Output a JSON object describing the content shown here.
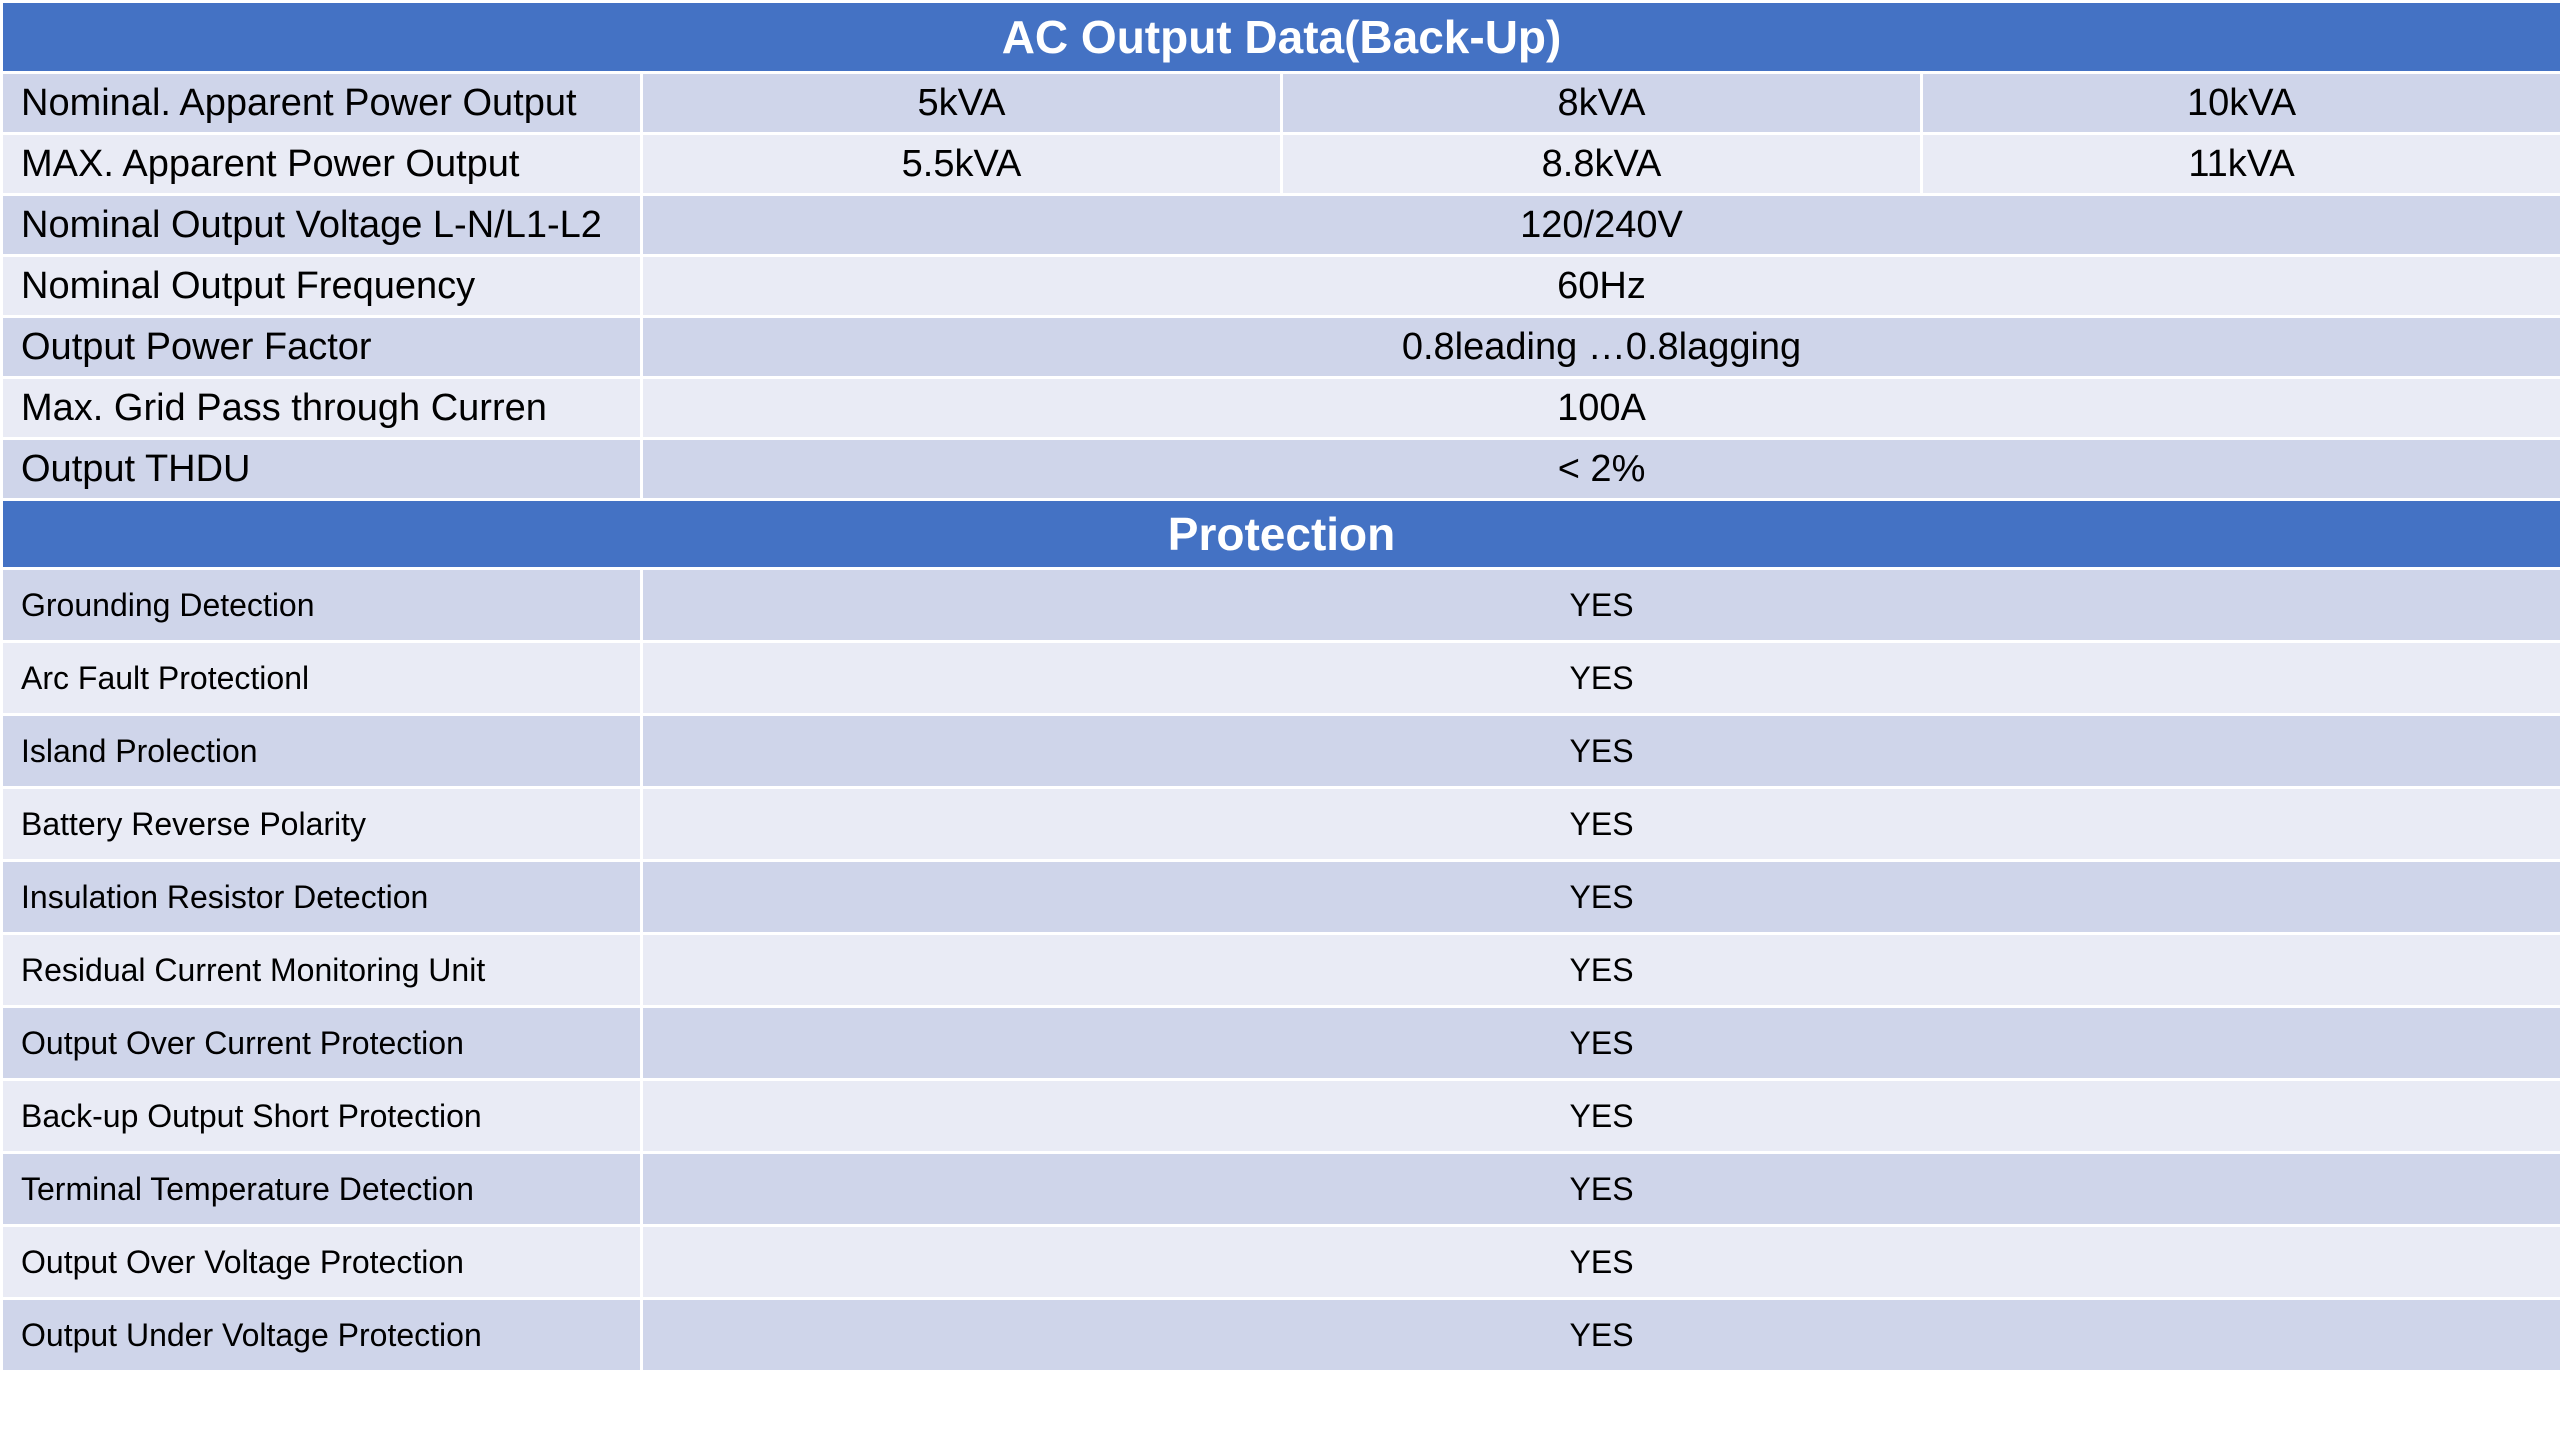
{
  "ac_output": {
    "title": "AC Output Data(Back-Up)",
    "rows": [
      {
        "label": "Nominal. Apparent Power Output",
        "values": [
          "5kVA",
          "8kVA",
          "10kVA"
        ]
      },
      {
        "label": "MAX. Apparent Power Output",
        "values": [
          "5.5kVA",
          "8.8kVA",
          "11kVA"
        ]
      },
      {
        "label": "Nominal Output Voltage L-N/L1-L2",
        "value": "120/240V"
      },
      {
        "label": "Nominal Output Frequency",
        "value": "60Hz"
      },
      {
        "label": "Output Power Factor",
        "value": "0.8leading …0.8lagging"
      },
      {
        "label": "Max. Grid Pass through Curren",
        "value": "100A"
      },
      {
        "label": "Output THDU",
        "value": "< 2%"
      }
    ]
  },
  "protection": {
    "title": "Protection",
    "rows": [
      {
        "label": "Grounding Detection",
        "value": "YES"
      },
      {
        "label": "Arc Fault Protectionl",
        "value": "YES"
      },
      {
        "label": "Island Prolection",
        "value": "YES"
      },
      {
        "label": "Battery Reverse Polarity",
        "value": "YES"
      },
      {
        "label": "Insulation Resistor Detection",
        "value": "YES"
      },
      {
        "label": "Residual Current Monitoring Unit",
        "value": "YES"
      },
      {
        "label": "Output Over Current Protection",
        "value": "YES"
      },
      {
        "label": "Back-up Output Short Protection",
        "value": "YES"
      },
      {
        "label": "Terminal Temperature Detection",
        "value": "YES"
      },
      {
        "label": "Output Over Voltage Protection",
        "value": "YES"
      },
      {
        "label": "Output Under Voltage Protection",
        "value": "YES"
      }
    ]
  },
  "colors": {
    "header_blue": "#4472c4",
    "row_dark": "#cfd5ea",
    "row_light": "#e9ebf5"
  }
}
